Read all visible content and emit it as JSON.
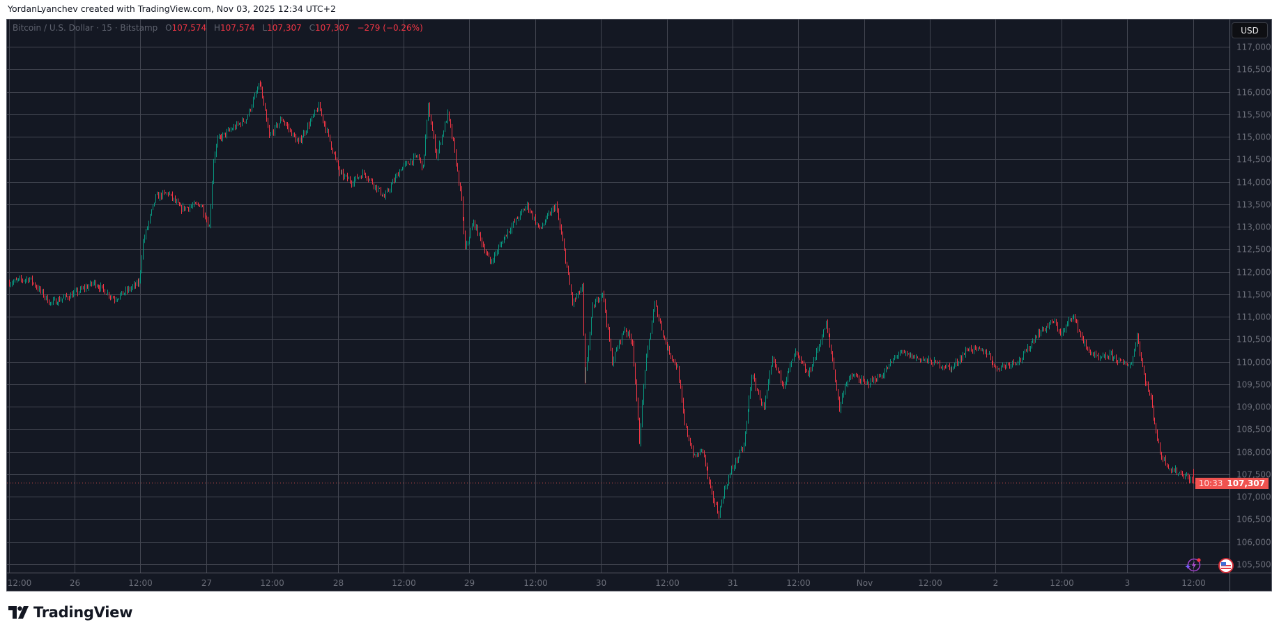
{
  "credit": "YordanLyanchev created with TradingView.com, Nov 03, 2025 12:34 UTC+2",
  "legend": {
    "symbol": "Bitcoin / U.S. Dollar · 15 · Bitstamp",
    "o_label": "O",
    "o": "107,574",
    "h_label": "H",
    "h": "107,574",
    "l_label": "L",
    "l": "107,307",
    "c_label": "C",
    "c": "107,307",
    "change": "−279 (−0.26%)"
  },
  "currency_button": "USD",
  "last_price": {
    "value": "107,307",
    "countdown": "10:33"
  },
  "logo_text": "TradingView",
  "icons": [
    "lightning-alert-icon",
    "us-flag-icon",
    "tradingview-logo-icon"
  ],
  "colors": {
    "background": "#141823",
    "up": "#089981",
    "down": "#f23645",
    "last_price": "#f05350",
    "grid": "#434651"
  },
  "chart_data": {
    "type": "candlestick",
    "timeframe": "15",
    "year": 2025,
    "ylim": [
      105300,
      117350
    ],
    "y_ticks": [
      105500,
      106000,
      106500,
      107000,
      107500,
      108000,
      108500,
      109000,
      109500,
      110000,
      110500,
      111000,
      111500,
      112000,
      112500,
      113000,
      113500,
      114000,
      114500,
      115000,
      115500,
      116000,
      116500,
      117000
    ],
    "y_tick_labels": [
      "105,500",
      "106,000",
      "106,500",
      "107,000",
      "107,500",
      "108,000",
      "108,500",
      "109,000",
      "109,500",
      "110,000",
      "110,500",
      "111,000",
      "111,500",
      "112,000",
      "112,500",
      "113,000",
      "113,500",
      "114,000",
      "114,500",
      "115,000",
      "115,500",
      "116,000",
      "116,500",
      "117,000"
    ],
    "x_ticks": [
      {
        "t": "10-25 12:00",
        "label": "12:00"
      },
      {
        "t": "10-26 00:00",
        "label": "26"
      },
      {
        "t": "10-26 12:00",
        "label": "12:00"
      },
      {
        "t": "10-27 00:00",
        "label": "27"
      },
      {
        "t": "10-27 12:00",
        "label": "12:00"
      },
      {
        "t": "10-28 00:00",
        "label": "28"
      },
      {
        "t": "10-28 12:00",
        "label": "12:00"
      },
      {
        "t": "10-29 00:00",
        "label": "29"
      },
      {
        "t": "10-29 12:00",
        "label": "12:00"
      },
      {
        "t": "10-30 00:00",
        "label": "30"
      },
      {
        "t": "10-30 12:00",
        "label": "12:00"
      },
      {
        "t": "10-31 00:00",
        "label": "31"
      },
      {
        "t": "10-31 12:00",
        "label": "12:00"
      },
      {
        "t": "11-01 00:00",
        "label": "Nov"
      },
      {
        "t": "11-01 12:00",
        "label": "12:00"
      },
      {
        "t": "11-02 00:00",
        "label": "2"
      },
      {
        "t": "11-02 12:00",
        "label": "12:00"
      },
      {
        "t": "11-03 00:00",
        "label": "3"
      },
      {
        "t": "11-03 12:00",
        "label": "12:00"
      }
    ],
    "last_price": 107307,
    "price_path": [
      [
        "10-25 12:00",
        111760
      ],
      [
        "10-25 15:45",
        111850
      ],
      [
        "10-25 19:30",
        111300
      ],
      [
        "10-25 23:45",
        111500
      ],
      [
        "10-26 03:30",
        111760
      ],
      [
        "10-26 07:15",
        111400
      ],
      [
        "10-26 11:45",
        111760
      ],
      [
        "10-26 12:30",
        112660
      ],
      [
        "10-26 14:45",
        113660
      ],
      [
        "10-26 17:00",
        113750
      ],
      [
        "10-26 19:15",
        113400
      ],
      [
        "10-26 23:00",
        113500
      ],
      [
        "10-27 00:30",
        113000
      ],
      [
        "10-27 01:15",
        114500
      ],
      [
        "10-27 02:00",
        114930
      ],
      [
        "10-27 05:00",
        115200
      ],
      [
        "10-27 07:15",
        115400
      ],
      [
        "10-27 09:45",
        116200
      ],
      [
        "10-27 11:30",
        115000
      ],
      [
        "10-27 13:45",
        115400
      ],
      [
        "10-27 16:45",
        114850
      ],
      [
        "10-27 20:30",
        115670
      ],
      [
        "10-27 22:00",
        115100
      ],
      [
        "10-28 00:15",
        114200
      ],
      [
        "10-28 02:30",
        114000
      ],
      [
        "10-28 04:45",
        114200
      ],
      [
        "10-28 08:30",
        113650
      ],
      [
        "10-28 11:30",
        114300
      ],
      [
        "10-28 14:30",
        114570
      ],
      [
        "10-28 15:30",
        114300
      ],
      [
        "10-28 16:30",
        115670
      ],
      [
        "10-28 18:00",
        114570
      ],
      [
        "10-28 20:00",
        115500
      ],
      [
        "10-28 21:00",
        114850
      ],
      [
        "10-28 22:30",
        113570
      ],
      [
        "10-28 23:15",
        112480
      ],
      [
        "10-29 00:45",
        113100
      ],
      [
        "10-29 03:45",
        112200
      ],
      [
        "10-29 06:45",
        112850
      ],
      [
        "10-29 10:30",
        113480
      ],
      [
        "10-29 12:45",
        112940
      ],
      [
        "10-29 15:45",
        113480
      ],
      [
        "10-29 17:15",
        112480
      ],
      [
        "10-29 18:45",
        111300
      ],
      [
        "10-29 20:30",
        111650
      ],
      [
        "10-29 21:00",
        109500
      ],
      [
        "10-29 22:30",
        111200
      ],
      [
        "10-30 00:15",
        111570
      ],
      [
        "10-30 02:00",
        110000
      ],
      [
        "10-30 04:15",
        110750
      ],
      [
        "10-30 05:45",
        110450
      ],
      [
        "10-30 07:00",
        108230
      ],
      [
        "10-30 08:00",
        109850
      ],
      [
        "10-30 09:45",
        111300
      ],
      [
        "10-30 11:45",
        110400
      ],
      [
        "10-30 14:00",
        109850
      ],
      [
        "10-30 15:15",
        108600
      ],
      [
        "10-30 17:00",
        107870
      ],
      [
        "10-30 18:30",
        108050
      ],
      [
        "10-30 20:00",
        107130
      ],
      [
        "10-30 21:30",
        106600
      ],
      [
        "10-30 22:15",
        107050
      ],
      [
        "10-30 23:45",
        107600
      ],
      [
        "10-31 02:00",
        108130
      ],
      [
        "10-31 03:30",
        109700
      ],
      [
        "10-31 05:45",
        108950
      ],
      [
        "10-31 07:15",
        110050
      ],
      [
        "10-31 09:15",
        109500
      ],
      [
        "10-31 11:30",
        110200
      ],
      [
        "10-31 13:45",
        109700
      ],
      [
        "10-31 15:15",
        110200
      ],
      [
        "10-31 17:00",
        110850
      ],
      [
        "10-31 18:15",
        110050
      ],
      [
        "10-31 19:30",
        108950
      ],
      [
        "10-31 20:30",
        109500
      ],
      [
        "10-31 22:00",
        109700
      ],
      [
        "11-01 00:15",
        109500
      ],
      [
        "11-01 03:15",
        109700
      ],
      [
        "11-01 06:15",
        110200
      ],
      [
        "11-01 10:45",
        110050
      ],
      [
        "11-01 16:00",
        109850
      ],
      [
        "11-01 19:00",
        110300
      ],
      [
        "11-01 22:30",
        110200
      ],
      [
        "11-02 00:00",
        109850
      ],
      [
        "11-02 04:30",
        110050
      ],
      [
        "11-02 07:30",
        110600
      ],
      [
        "11-02 10:30",
        110900
      ],
      [
        "11-02 12:00",
        110600
      ],
      [
        "11-02 14:00",
        111060
      ],
      [
        "11-02 16:30",
        110300
      ],
      [
        "11-02 18:45",
        110050
      ],
      [
        "11-02 21:00",
        110150
      ],
      [
        "11-02 23:15",
        109950
      ],
      [
        "11-03 00:45",
        109950
      ],
      [
        "11-03 01:45",
        110600
      ],
      [
        "11-03 03:00",
        109700
      ],
      [
        "11-03 04:15",
        109150
      ],
      [
        "11-03 06:00",
        107960
      ],
      [
        "11-03 08:00",
        107600
      ],
      [
        "11-03 10:15",
        107500
      ],
      [
        "11-03 12:00",
        107307
      ]
    ]
  }
}
